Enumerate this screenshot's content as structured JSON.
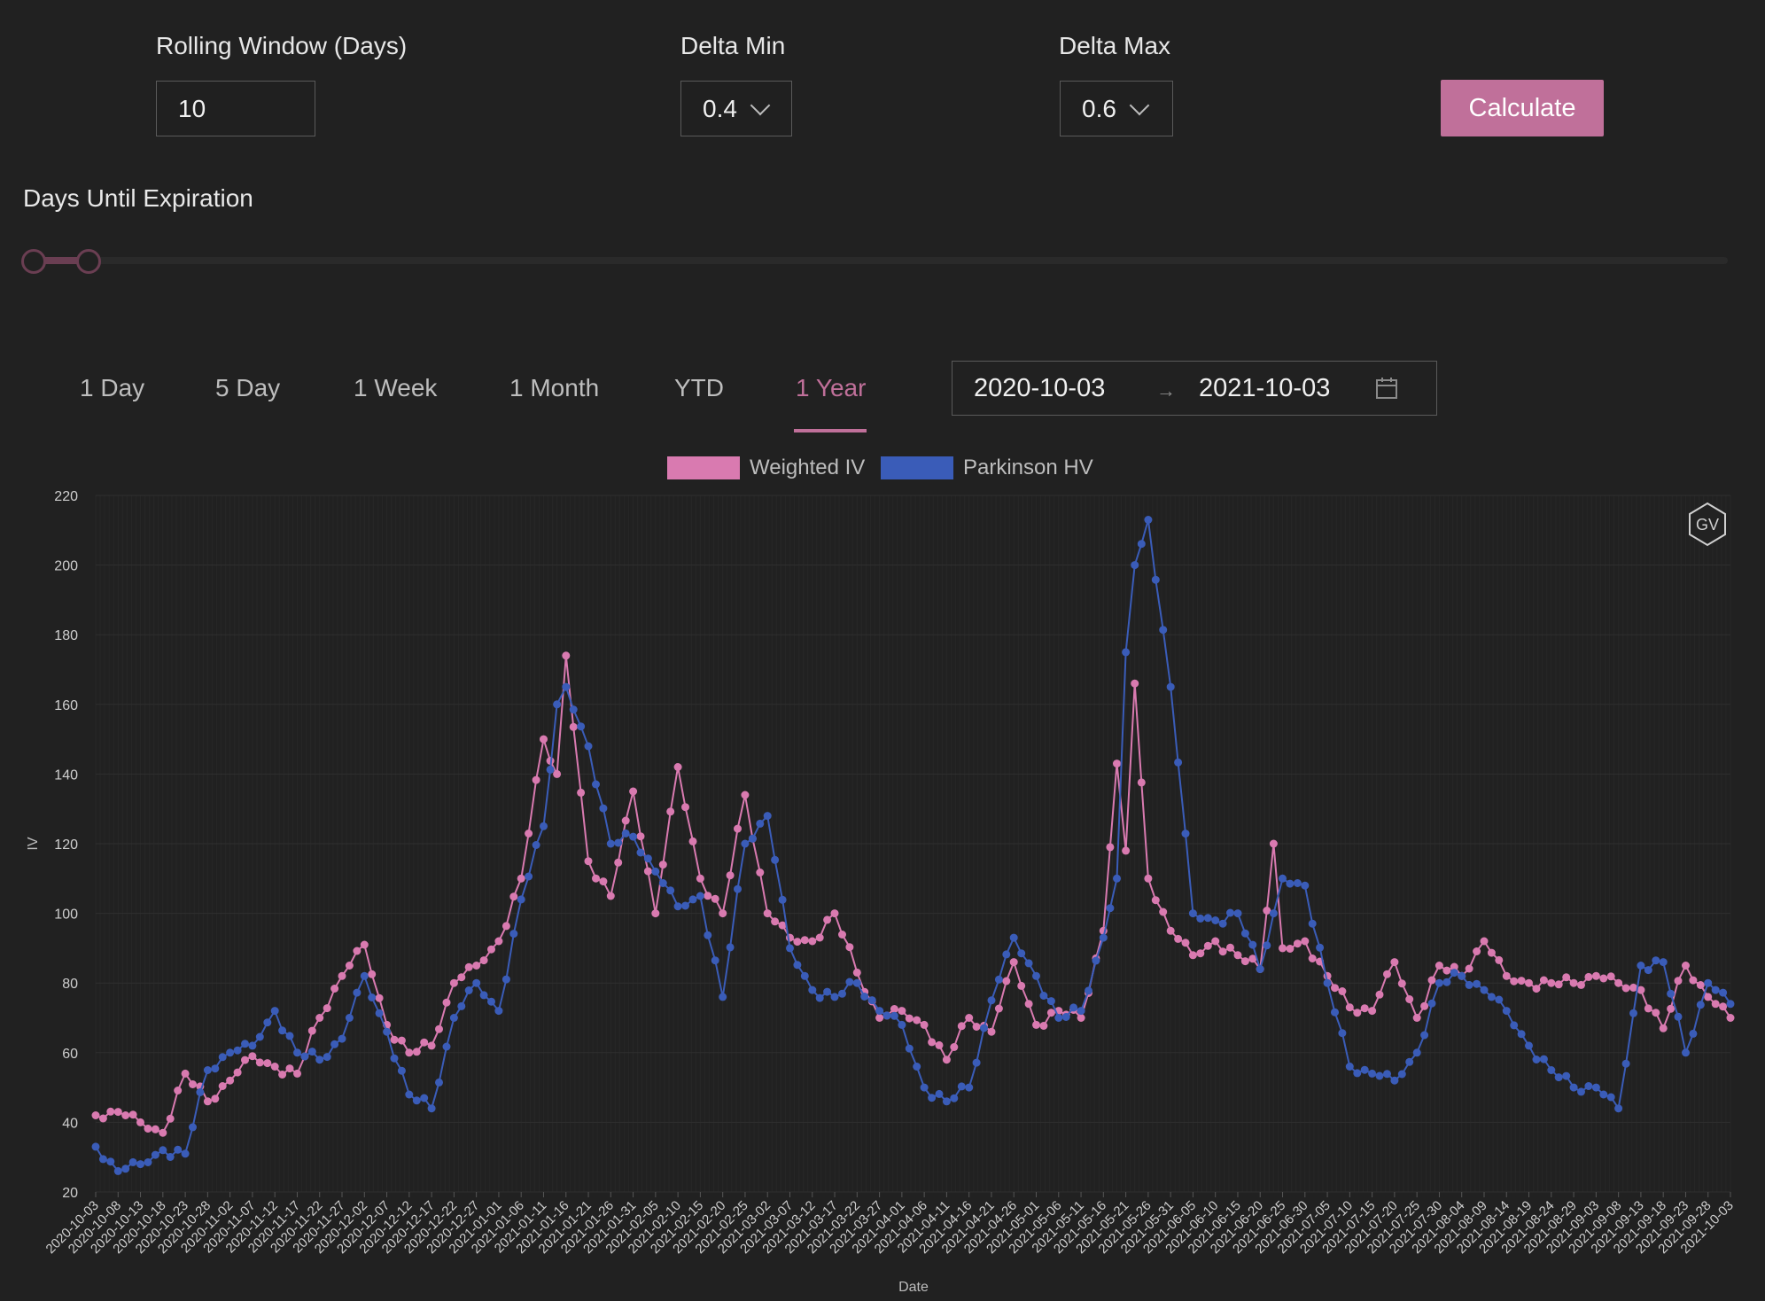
{
  "controls": {
    "rolling_window_label": "Rolling Window (Days)",
    "rolling_window_value": "10",
    "delta_min_label": "Delta Min",
    "delta_min_value": "0.4",
    "delta_max_label": "Delta Max",
    "delta_max_value": "0.6",
    "calculate_label": "Calculate",
    "dte_label": "Days Until Expiration"
  },
  "tabs": [
    {
      "label": "1 Day"
    },
    {
      "label": "5 Day"
    },
    {
      "label": "1 Week"
    },
    {
      "label": "1 Month"
    },
    {
      "label": "YTD"
    },
    {
      "label": "1 Year",
      "active": true
    }
  ],
  "date_range": {
    "start": "2020-10-03",
    "end": "2021-10-03"
  },
  "badge": "GV",
  "colors": {
    "accent": "#c0709a",
    "iv": "#d97ab0",
    "hv": "#3a5cb8",
    "grid": "#2c2c2c"
  },
  "chart_data": {
    "type": "line",
    "xlabel": "Date",
    "ylabel": "IV",
    "ylim": [
      20,
      220
    ],
    "yticks": [
      20,
      40,
      60,
      80,
      100,
      120,
      140,
      160,
      180,
      200,
      220
    ],
    "grid": true,
    "legend": "top-center",
    "tick_dates": [
      "2020-10-03",
      "2020-10-08",
      "2020-10-13",
      "2020-10-18",
      "2020-10-23",
      "2020-10-28",
      "2020-11-02",
      "2020-11-07",
      "2020-11-12",
      "2020-11-17",
      "2020-11-22",
      "2020-11-27",
      "2020-12-02",
      "2020-12-07",
      "2020-12-12",
      "2020-12-17",
      "2020-12-22",
      "2020-12-27",
      "2021-01-01",
      "2021-01-06",
      "2021-01-11",
      "2021-01-16",
      "2021-01-21",
      "2021-01-26",
      "2021-01-31",
      "2021-02-05",
      "2021-02-10",
      "2021-02-15",
      "2021-02-20",
      "2021-02-25",
      "2021-03-02",
      "2021-03-07",
      "2021-03-12",
      "2021-03-17",
      "2021-03-22",
      "2021-03-27",
      "2021-04-01",
      "2021-04-06",
      "2021-04-11",
      "2021-04-16",
      "2021-04-21",
      "2021-04-26",
      "2021-05-01",
      "2021-05-06",
      "2021-05-11",
      "2021-05-16",
      "2021-05-21",
      "2021-05-26",
      "2021-05-31",
      "2021-06-05",
      "2021-06-10",
      "2021-06-15",
      "2021-06-20",
      "2021-06-25",
      "2021-06-30",
      "2021-07-05",
      "2021-07-10",
      "2021-07-15",
      "2021-07-20",
      "2021-07-25",
      "2021-07-30",
      "2021-08-04",
      "2021-08-09",
      "2021-08-14",
      "2021-08-19",
      "2021-08-24",
      "2021-08-29",
      "2021-09-03",
      "2021-09-08",
      "2021-09-13",
      "2021-09-18",
      "2021-09-23",
      "2021-09-28",
      "2021-10-03"
    ],
    "series": [
      {
        "name": "Weighted IV",
        "points": [
          [
            "2020-10-03",
            42
          ],
          [
            "2020-10-08",
            43
          ],
          [
            "2020-10-13",
            40
          ],
          [
            "2020-10-18",
            37
          ],
          [
            "2020-10-23",
            54
          ],
          [
            "2020-10-28",
            46
          ],
          [
            "2020-11-02",
            52
          ],
          [
            "2020-11-07",
            59
          ],
          [
            "2020-11-12",
            56
          ],
          [
            "2020-11-17",
            54
          ],
          [
            "2020-11-22",
            70
          ],
          [
            "2020-11-27",
            82
          ],
          [
            "2020-12-02",
            91
          ],
          [
            "2020-12-07",
            68
          ],
          [
            "2020-12-12",
            60
          ],
          [
            "2020-12-17",
            62
          ],
          [
            "2020-12-22",
            80
          ],
          [
            "2020-12-27",
            85
          ],
          [
            "2021-01-01",
            92
          ],
          [
            "2021-01-06",
            110
          ],
          [
            "2021-01-11",
            150
          ],
          [
            "2021-01-14",
            140
          ],
          [
            "2021-01-16",
            174
          ],
          [
            "2021-01-21",
            115
          ],
          [
            "2021-01-26",
            105
          ],
          [
            "2021-01-31",
            135
          ],
          [
            "2021-02-05",
            100
          ],
          [
            "2021-02-10",
            142
          ],
          [
            "2021-02-15",
            110
          ],
          [
            "2021-02-20",
            100
          ],
          [
            "2021-02-25",
            134
          ],
          [
            "2021-03-02",
            100
          ],
          [
            "2021-03-07",
            93
          ],
          [
            "2021-03-12",
            92
          ],
          [
            "2021-03-17",
            100
          ],
          [
            "2021-03-22",
            83
          ],
          [
            "2021-03-27",
            70
          ],
          [
            "2021-04-01",
            72
          ],
          [
            "2021-04-06",
            68
          ],
          [
            "2021-04-11",
            58
          ],
          [
            "2021-04-16",
            70
          ],
          [
            "2021-04-21",
            66
          ],
          [
            "2021-04-26",
            86
          ],
          [
            "2021-05-01",
            68
          ],
          [
            "2021-05-06",
            72
          ],
          [
            "2021-05-11",
            70
          ],
          [
            "2021-05-16",
            95
          ],
          [
            "2021-05-19",
            143
          ],
          [
            "2021-05-21",
            118
          ],
          [
            "2021-05-23",
            166
          ],
          [
            "2021-05-26",
            110
          ],
          [
            "2021-05-31",
            95
          ],
          [
            "2021-06-05",
            88
          ],
          [
            "2021-06-10",
            92
          ],
          [
            "2021-06-15",
            88
          ],
          [
            "2021-06-20",
            84
          ],
          [
            "2021-06-23",
            120
          ],
          [
            "2021-06-25",
            90
          ],
          [
            "2021-06-30",
            92
          ],
          [
            "2021-07-05",
            82
          ],
          [
            "2021-07-10",
            73
          ],
          [
            "2021-07-15",
            72
          ],
          [
            "2021-07-20",
            86
          ],
          [
            "2021-07-25",
            70
          ],
          [
            "2021-07-30",
            85
          ],
          [
            "2021-08-04",
            82
          ],
          [
            "2021-08-09",
            92
          ],
          [
            "2021-08-14",
            82
          ],
          [
            "2021-08-19",
            80
          ],
          [
            "2021-08-24",
            80
          ],
          [
            "2021-08-29",
            80
          ],
          [
            "2021-09-03",
            82
          ],
          [
            "2021-09-08",
            80
          ],
          [
            "2021-09-13",
            78
          ],
          [
            "2021-09-18",
            67
          ],
          [
            "2021-09-23",
            85
          ],
          [
            "2021-09-28",
            76
          ],
          [
            "2021-10-03",
            70
          ]
        ]
      },
      {
        "name": "Parkinson HV",
        "points": [
          [
            "2020-10-03",
            33
          ],
          [
            "2020-10-08",
            26
          ],
          [
            "2020-10-13",
            28
          ],
          [
            "2020-10-18",
            32
          ],
          [
            "2020-10-23",
            31
          ],
          [
            "2020-10-28",
            55
          ],
          [
            "2020-11-02",
            60
          ],
          [
            "2020-11-07",
            62
          ],
          [
            "2020-11-12",
            72
          ],
          [
            "2020-11-17",
            60
          ],
          [
            "2020-11-22",
            58
          ],
          [
            "2020-11-27",
            64
          ],
          [
            "2020-12-02",
            82
          ],
          [
            "2020-12-07",
            66
          ],
          [
            "2020-12-12",
            48
          ],
          [
            "2020-12-17",
            44
          ],
          [
            "2020-12-22",
            70
          ],
          [
            "2020-12-27",
            80
          ],
          [
            "2021-01-01",
            72
          ],
          [
            "2021-01-06",
            104
          ],
          [
            "2021-01-11",
            125
          ],
          [
            "2021-01-14",
            160
          ],
          [
            "2021-01-16",
            165
          ],
          [
            "2021-01-21",
            148
          ],
          [
            "2021-01-26",
            120
          ],
          [
            "2021-01-31",
            122
          ],
          [
            "2021-02-05",
            112
          ],
          [
            "2021-02-10",
            102
          ],
          [
            "2021-02-15",
            105
          ],
          [
            "2021-02-20",
            76
          ],
          [
            "2021-02-25",
            120
          ],
          [
            "2021-03-02",
            128
          ],
          [
            "2021-03-07",
            90
          ],
          [
            "2021-03-12",
            78
          ],
          [
            "2021-03-17",
            76
          ],
          [
            "2021-03-22",
            80
          ],
          [
            "2021-03-27",
            72
          ],
          [
            "2021-04-01",
            68
          ],
          [
            "2021-04-06",
            50
          ],
          [
            "2021-04-11",
            46
          ],
          [
            "2021-04-16",
            50
          ],
          [
            "2021-04-21",
            75
          ],
          [
            "2021-04-26",
            93
          ],
          [
            "2021-05-01",
            82
          ],
          [
            "2021-05-06",
            70
          ],
          [
            "2021-05-11",
            72
          ],
          [
            "2021-05-16",
            93
          ],
          [
            "2021-05-19",
            110
          ],
          [
            "2021-05-21",
            175
          ],
          [
            "2021-05-23",
            200
          ],
          [
            "2021-05-26",
            213
          ],
          [
            "2021-05-31",
            165
          ],
          [
            "2021-06-05",
            100
          ],
          [
            "2021-06-10",
            98
          ],
          [
            "2021-06-15",
            100
          ],
          [
            "2021-06-20",
            84
          ],
          [
            "2021-06-23",
            100
          ],
          [
            "2021-06-25",
            110
          ],
          [
            "2021-06-30",
            108
          ],
          [
            "2021-07-05",
            80
          ],
          [
            "2021-07-10",
            56
          ],
          [
            "2021-07-15",
            54
          ],
          [
            "2021-07-20",
            52
          ],
          [
            "2021-07-25",
            60
          ],
          [
            "2021-07-30",
            80
          ],
          [
            "2021-08-04",
            82
          ],
          [
            "2021-08-09",
            78
          ],
          [
            "2021-08-14",
            72
          ],
          [
            "2021-08-19",
            62
          ],
          [
            "2021-08-24",
            55
          ],
          [
            "2021-08-29",
            50
          ],
          [
            "2021-09-03",
            50
          ],
          [
            "2021-09-08",
            44
          ],
          [
            "2021-09-13",
            85
          ],
          [
            "2021-09-18",
            86
          ],
          [
            "2021-09-23",
            60
          ],
          [
            "2021-09-28",
            80
          ],
          [
            "2021-10-03",
            74
          ]
        ]
      }
    ]
  }
}
